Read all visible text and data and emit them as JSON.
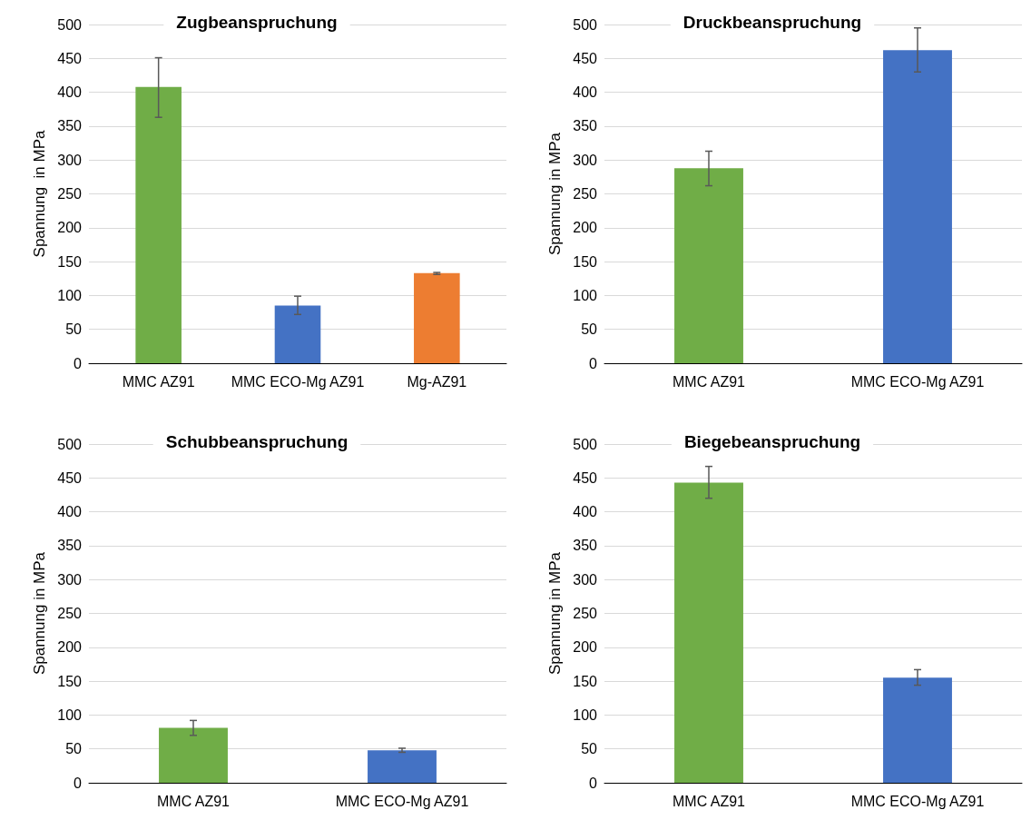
{
  "chart_data": [
    {
      "type": "bar",
      "title": "Zugbeanspruchung",
      "ylabel": "Spannung  in MPa",
      "categories": [
        "MMC AZ91",
        "MMC ECO-Mg AZ91",
        "Mg-AZ91"
      ],
      "values": [
        408,
        85,
        133
      ],
      "colors": [
        "#70ad47",
        "#4472c4",
        "#ed7d31"
      ],
      "errors": [
        [
          363,
          451
        ],
        [
          72,
          99
        ],
        [
          131,
          134
        ]
      ],
      "ylim": [
        0,
        500
      ],
      "yticks": [
        0,
        50,
        100,
        150,
        200,
        250,
        300,
        350,
        400,
        450,
        500
      ],
      "grid": "y"
    },
    {
      "type": "bar",
      "title": "Druckbeanspruchung",
      "ylabel": "Spannung in MPa",
      "categories": [
        "MMC AZ91",
        "MMC ECO-Mg AZ91"
      ],
      "values": [
        288,
        462
      ],
      "colors": [
        "#70ad47",
        "#4472c4"
      ],
      "errors": [
        [
          262,
          313
        ],
        [
          430,
          495
        ]
      ],
      "ylim": [
        0,
        500
      ],
      "yticks": [
        0,
        50,
        100,
        150,
        200,
        250,
        300,
        350,
        400,
        450,
        500
      ],
      "grid": "y"
    },
    {
      "type": "bar",
      "title": "Schubbeanspruchung",
      "ylabel": "Spannung in MPa",
      "categories": [
        "MMC AZ91",
        "MMC ECO-Mg AZ91"
      ],
      "values": [
        81,
        48
      ],
      "colors": [
        "#70ad47",
        "#4472c4"
      ],
      "errors": [
        [
          70,
          92
        ],
        [
          45,
          51
        ]
      ],
      "ylim": [
        0,
        500
      ],
      "yticks": [
        0,
        50,
        100,
        150,
        200,
        250,
        300,
        350,
        400,
        450,
        500
      ],
      "grid": "y"
    },
    {
      "type": "bar",
      "title": "Biegebeanspruchung",
      "ylabel": "Spannung in MPa",
      "categories": [
        "MMC AZ91",
        "MMC ECO-Mg AZ91"
      ],
      "values": [
        443,
        155
      ],
      "colors": [
        "#70ad47",
        "#4472c4"
      ],
      "errors": [
        [
          420,
          467
        ],
        [
          144,
          167
        ]
      ],
      "ylim": [
        0,
        500
      ],
      "yticks": [
        0,
        50,
        100,
        150,
        200,
        250,
        300,
        350,
        400,
        450,
        500
      ],
      "grid": "y"
    }
  ]
}
